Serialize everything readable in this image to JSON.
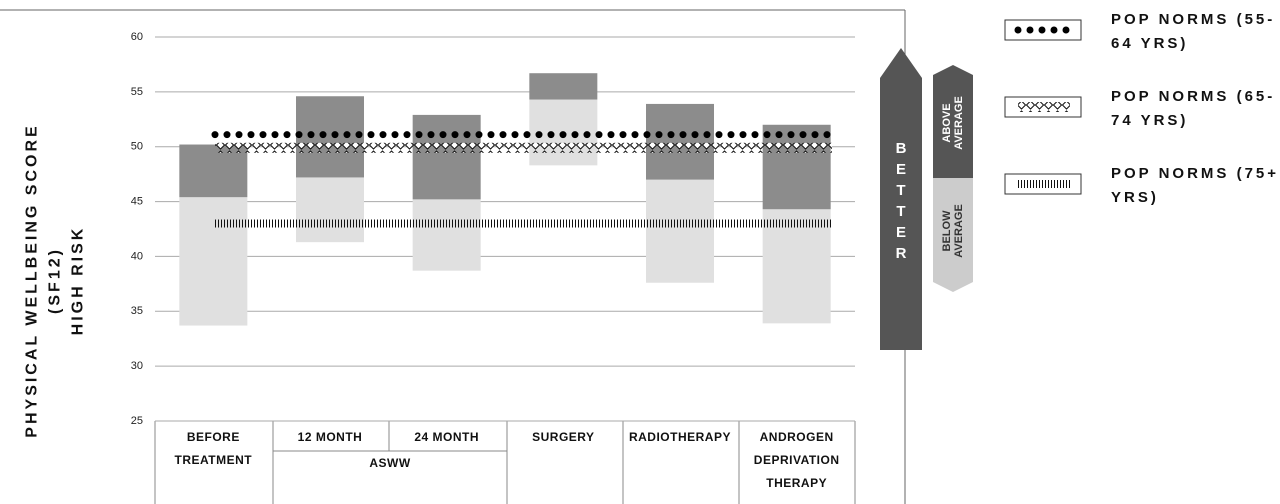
{
  "chart_data": {
    "type": "range-bar",
    "y_label": [
      "PHYSICAL WELLBEING SCORE (SF12)",
      "HIGH RISK"
    ],
    "categories": [
      "BEFORE TREATMENT",
      "12 MONTH",
      "24 MONTH",
      "SURGERY",
      "RADIOTHERAPY",
      "ANDROGEN DEPRIVATION THERAPY"
    ],
    "group_label": "ASWW",
    "boxes": [
      {
        "low": 33.7,
        "mid": 45.4,
        "high": 50.2
      },
      {
        "low": 41.3,
        "mid": 47.2,
        "high": 54.6
      },
      {
        "low": 38.7,
        "mid": 45.2,
        "high": 52.9
      },
      {
        "low": 48.3,
        "mid": 54.3,
        "high": 56.7
      },
      {
        "low": 37.6,
        "mid": 47.0,
        "high": 53.9
      },
      {
        "low": 33.9,
        "mid": 44.3,
        "high": 52.0
      }
    ],
    "lower_color": "#e0e0e0",
    "upper_color": "#8c8c8c",
    "reference_lines": [
      {
        "name": "POP NORMS (55-64 YRS)",
        "value": 51.1,
        "style": "dots"
      },
      {
        "name": "POP NORMS (65-74 YRS)",
        "value": 49.9,
        "style": "diamonds"
      },
      {
        "name": "POP NORMS (75+ YRS)",
        "value": 43.0,
        "style": "hatch"
      }
    ],
    "ylim": [
      25,
      60
    ],
    "yticks": [
      25,
      30,
      35,
      40,
      45,
      50,
      55,
      60
    ],
    "grid": true,
    "annotations": {
      "arrow": "BETTER",
      "above": "ABOVE AVERAGE",
      "below": "BELOW AVERAGE"
    }
  }
}
